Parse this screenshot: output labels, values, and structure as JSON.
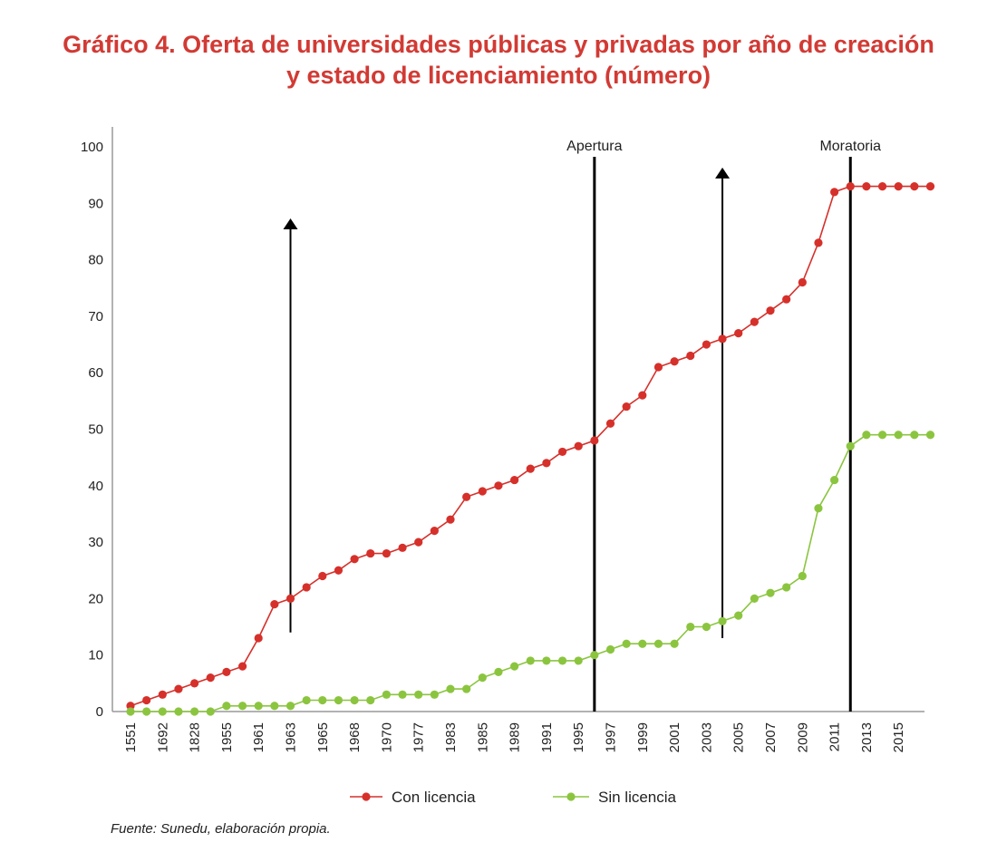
{
  "title_line1": "Gráfico 4. Oferta de universidades públicas y privadas por año de creación",
  "title_line2": "y estado de licenciamiento (número)",
  "source": "Fuente: Sunedu, elaboración propia.",
  "colors": {
    "con": "#d6302b",
    "sin": "#8bc53f",
    "title": "#d23a34"
  },
  "chart_data": {
    "type": "line",
    "title": "Gráfico 4. Oferta de universidades públicas y privadas por año de creación y estado de licenciamiento (número)",
    "ylim": [
      0,
      100
    ],
    "yticks": [
      0,
      10,
      20,
      30,
      40,
      50,
      60,
      70,
      80,
      90,
      100
    ],
    "x_tick_labels": [
      "1551",
      "1692",
      "1828",
      "1955",
      "1961",
      "1963",
      "1965",
      "1968",
      "1970",
      "1977",
      "1983",
      "1985",
      "1989",
      "1991",
      "1995",
      "1997",
      "1999",
      "2001",
      "2003",
      "2005",
      "2007",
      "2009",
      "2011",
      "2013",
      "2015"
    ],
    "grid": false,
    "legend_position": "bottom",
    "series": [
      {
        "name": "Con licencia",
        "color": "#d6302b",
        "values": [
          1,
          2,
          3,
          4,
          5,
          6,
          7,
          8,
          13,
          19,
          20,
          22,
          24,
          25,
          27,
          28,
          28,
          29,
          30,
          32,
          34,
          38,
          39,
          40,
          41,
          43,
          44,
          46,
          47,
          48,
          51,
          54,
          56,
          61,
          62,
          63,
          65,
          66,
          67,
          69,
          71,
          73,
          76,
          83,
          92,
          93,
          93,
          93,
          93,
          93,
          93
        ]
      },
      {
        "name": "Sin licencia",
        "color": "#8bc53f",
        "values": [
          0,
          0,
          0,
          0,
          0,
          0,
          1,
          1,
          1,
          1,
          1,
          2,
          2,
          2,
          2,
          2,
          3,
          3,
          3,
          3,
          4,
          4,
          6,
          7,
          8,
          9,
          9,
          9,
          9,
          10,
          11,
          12,
          12,
          12,
          12,
          15,
          15,
          16,
          17,
          20,
          21,
          22,
          24,
          36,
          41,
          47,
          49,
          49,
          49,
          49,
          49
        ]
      }
    ],
    "annotations": [
      {
        "type": "arrow_up",
        "x_index": 10.0,
        "from": 14,
        "to": 87
      },
      {
        "type": "arrow_up",
        "x_index": 37.0,
        "from": 13,
        "to": 96
      },
      {
        "type": "vline",
        "x_index": 29.0,
        "label": "Apertura"
      },
      {
        "type": "vline",
        "x_index": 45.0,
        "label": "Moratoria"
      }
    ]
  }
}
